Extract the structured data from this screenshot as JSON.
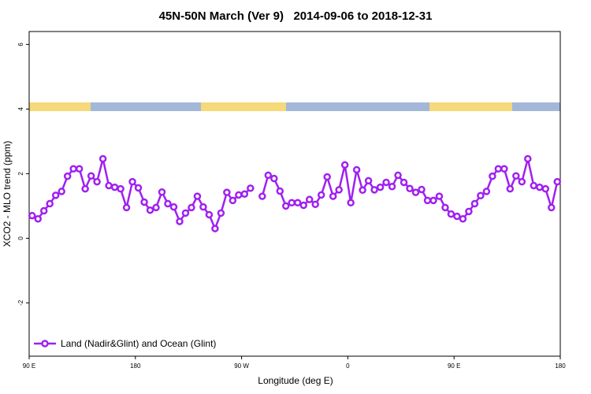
{
  "chart_data": {
    "type": "line",
    "title": "45N-50N March (Ver 9)   2014-09-06 to 2018-12-31",
    "x_label": "Longitude (deg E)",
    "y_label": "XCO2 - MLO trend (ppm)",
    "xlim": [
      90,
      540
    ],
    "ylim": [
      -3.65,
      6.4
    ],
    "xticks": [
      {
        "value": 90,
        "label": "90 E"
      },
      {
        "value": 180,
        "label": "180"
      },
      {
        "value": 270,
        "label": "90 W"
      },
      {
        "value": 360,
        "label": "0"
      },
      {
        "value": 450,
        "label": "90 E"
      },
      {
        "value": 540,
        "label": "180"
      }
    ],
    "yticks": [
      -2,
      0,
      2,
      4,
      6
    ],
    "legend_position": "bottom-left",
    "x": [
      92.5,
      97.5,
      102.5,
      107.5,
      112.5,
      117.5,
      122.5,
      127.5,
      132.5,
      137.5,
      142.5,
      147.5,
      152.5,
      157.5,
      162.5,
      167.5,
      172.5,
      177.5,
      182.5,
      187.5,
      192.5,
      197.5,
      202.5,
      207.5,
      212.5,
      217.5,
      222.5,
      227.5,
      232.5,
      237.5,
      242.5,
      247.5,
      252.5,
      257.5,
      262.5,
      267.5,
      272.5,
      277.5,
      282.5,
      287.5,
      292.5,
      297.5,
      302.5,
      307.5,
      312.5,
      317.5,
      322.5,
      327.5,
      332.5,
      337.5,
      342.5,
      347.5,
      352.5,
      357.5,
      362.5,
      367.5,
      372.5,
      377.5,
      382.5,
      387.5,
      392.5,
      397.5,
      402.5,
      407.5,
      412.5,
      417.5,
      422.5,
      427.5,
      432.5,
      437.5,
      442.5,
      447.5,
      452.5,
      457.5,
      462.5,
      467.5,
      472.5,
      477.5,
      482.5,
      487.5,
      492.5,
      497.5,
      502.5,
      507.5,
      512.5,
      517.5,
      522.5,
      527.5,
      532.5,
      537.5
    ],
    "series": [
      {
        "name": "Land (Nadir&Glint) and Ocean (Glint)",
        "color": "#a020f0",
        "values": [
          0.7,
          0.6,
          0.85,
          1.07,
          1.33,
          1.45,
          1.92,
          2.15,
          2.15,
          1.53,
          1.93,
          1.75,
          2.46,
          1.63,
          1.58,
          1.53,
          0.95,
          1.75,
          1.56,
          1.12,
          0.87,
          0.95,
          1.43,
          1.07,
          0.97,
          0.52,
          0.78,
          0.95,
          1.3,
          0.97,
          0.73,
          0.3,
          0.78,
          1.42,
          1.17,
          1.34,
          1.37,
          1.55,
          null,
          1.3,
          1.95,
          1.85,
          1.46,
          1.0,
          1.1,
          1.1,
          1.02,
          1.2,
          1.05,
          1.34,
          1.9,
          1.3,
          1.5,
          2.27,
          1.1,
          2.12,
          1.49,
          1.78,
          1.5,
          1.58,
          1.73,
          1.6,
          1.95,
          1.73,
          1.54,
          1.42,
          1.51,
          1.17,
          1.17,
          1.3,
          0.95,
          0.75,
          0.68,
          0.6,
          0.83,
          1.07,
          1.32,
          1.45,
          1.92,
          2.15,
          2.15,
          1.53,
          1.93,
          1.75,
          2.46,
          1.63,
          1.58,
          1.53,
          0.95,
          1.75
        ]
      }
    ]
  }
}
